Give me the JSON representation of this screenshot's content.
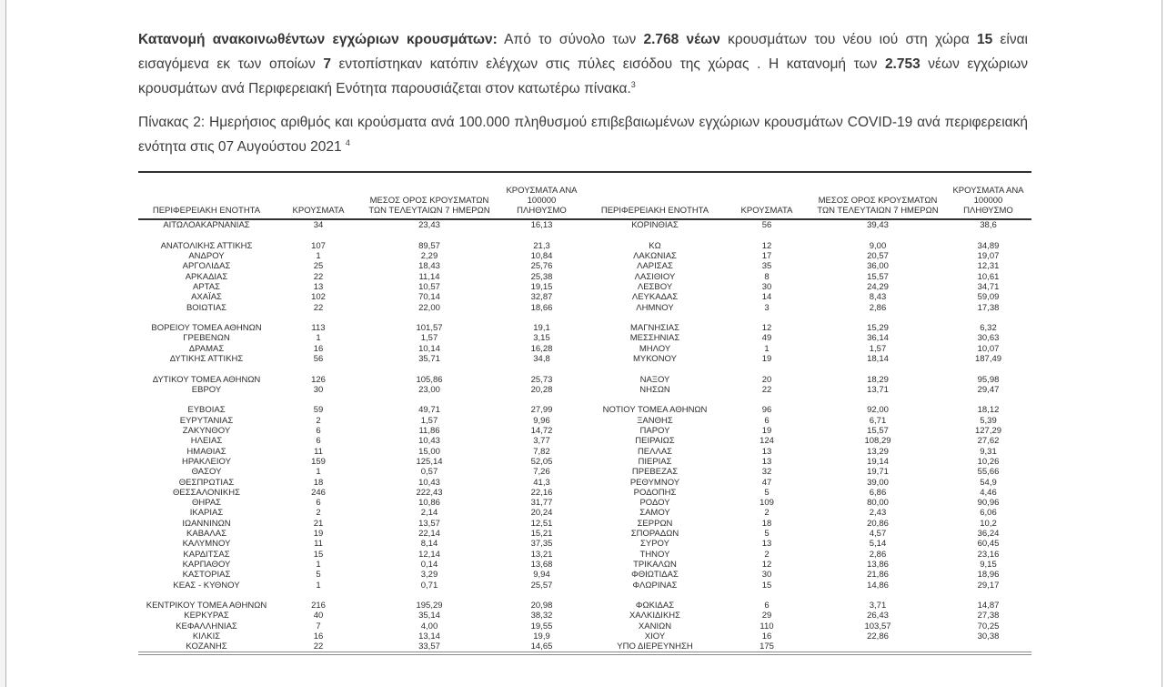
{
  "colors": {
    "text": "#3c3c3c",
    "table_text": "#2d2d2d",
    "rule": "#303030",
    "bottom_double_rule": "#8a8a8a",
    "page_edge_line": "#b3b3b3"
  },
  "intro": {
    "segments": [
      {
        "text": "Κατανομή ανακοινωθέντων εγχώριων κρουσμάτων:",
        "bold": true
      },
      {
        "text": " Από το σύνολο των "
      },
      {
        "text": "2.768 νέων",
        "bold": true
      },
      {
        "text": " κρουσμάτων του νέου ιού στη χώρα "
      },
      {
        "text": "15",
        "bold": true
      },
      {
        "text": " είναι εισαγόμενα εκ των οποίων "
      },
      {
        "text": "7",
        "bold": true
      },
      {
        "text": " εντοπίστηκαν κατόπιν ελέγχων στις πύλες εισόδου της χώρας .  Η κατανομή των "
      },
      {
        "text": "2.753",
        "bold": true
      },
      {
        "text": " νέων εγχώριων κρουσμάτων ανά Περιφερειακή Ενότητα παρουσιάζεται στον κατωτέρω πίνακα."
      },
      {
        "text": "3",
        "sup": true
      }
    ]
  },
  "caption": {
    "segments": [
      {
        "text": "Πίνακας 2:  Ημερήσιος αριθμός και κρούσματα ανά 100.000 πληθυσμού επιβεβαιωμένων εγχώριων κρουσμάτων COVID-19 ανά περιφερειακή ενότητα στις 07 Αυγούστου 2021 "
      },
      {
        "text": "4",
        "sup": true
      }
    ]
  },
  "table": {
    "headers": [
      "ΠΕΡΙΦΕΡΕΙΑΚΗ ΕΝΟΤΗΤΑ",
      "ΚΡΟΥΣΜΑΤΑ",
      "ΜΕΣΟΣ ΟΡΟΣ ΚΡΟΥΣΜΑΤΩΝ\nΤΩΝ ΤΕΛΕΥΤΑΙΩΝ 7 ΗΜΕΡΩΝ",
      "ΚΡΟΥΣΜΑΤΑ ΑΝΑ 100000\nΠΛΗΘΥΣΜΟ"
    ],
    "rows": [
      [
        "ΑΙΤΩΛΟΑΚΑΡΝΑΝΙΑΣ",
        "34",
        "23,43",
        "16,13",
        "ΚΟΡΙΝΘΙΑΣ",
        "56",
        "39,43",
        "38,6"
      ],
      null,
      [
        "ΑΝΑΤΟΛΙΚΗΣ ΑΤΤΙΚΗΣ",
        "107",
        "89,57",
        "21,3",
        "ΚΩ",
        "12",
        "9,00",
        "34,89"
      ],
      [
        "ΑΝΔΡΟΥ",
        "1",
        "2,29",
        "10,84",
        "ΛΑΚΩΝΙΑΣ",
        "17",
        "20,57",
        "19,07"
      ],
      [
        "ΑΡΓΟΛΙΔΑΣ",
        "25",
        "18,43",
        "25,76",
        "ΛΑΡΙΣΑΣ",
        "35",
        "36,00",
        "12,31"
      ],
      [
        "ΑΡΚΑΔΙΑΣ",
        "22",
        "11,14",
        "25,38",
        "ΛΑΣΙΘΙΟΥ",
        "8",
        "15,57",
        "10,61"
      ],
      [
        "ΑΡΤΑΣ",
        "13",
        "10,57",
        "19,15",
        "ΛΕΣΒΟΥ",
        "30",
        "24,29",
        "34,71"
      ],
      [
        "ΑΧΑΪΑΣ",
        "102",
        "70,14",
        "32,87",
        "ΛΕΥΚΑΔΑΣ",
        "14",
        "8,43",
        "59,09"
      ],
      [
        "ΒΟΙΩΤΙΑΣ",
        "22",
        "22,00",
        "18,66",
        "ΛΗΜΝΟΥ",
        "3",
        "2,86",
        "17,38"
      ],
      null,
      [
        "ΒΟΡΕΙΟΥ ΤΟΜΕΑ ΑΘΗΝΩΝ",
        "113",
        "101,57",
        "19,1",
        "ΜΑΓΝΗΣΙΑΣ",
        "12",
        "15,29",
        "6,32"
      ],
      [
        "ΓΡΕΒΕΝΩΝ",
        "1",
        "1,57",
        "3,15",
        "ΜΕΣΣΗΝΙΑΣ",
        "49",
        "36,14",
        "30,63"
      ],
      [
        "ΔΡΑΜΑΣ",
        "16",
        "10,14",
        "16,28",
        "ΜΗΛΟΥ",
        "1",
        "1,57",
        "10,07"
      ],
      [
        "ΔΥΤΙΚΗΣ ΑΤΤΙΚΗΣ",
        "56",
        "35,71",
        "34,8",
        "ΜΥΚΟΝΟΥ",
        "19",
        "18,14",
        "187,49"
      ],
      null,
      [
        "ΔΥΤΙΚΟΥ ΤΟΜΕΑ ΑΘΗΝΩΝ",
        "126",
        "105,86",
        "25,73",
        "ΝΑΞΟΥ",
        "20",
        "18,29",
        "95,98"
      ],
      [
        "ΕΒΡΟΥ",
        "30",
        "23,00",
        "20,28",
        "ΝΗΣΩΝ",
        "22",
        "13,71",
        "29,47"
      ],
      null,
      [
        "ΕΥΒΟΙΑΣ",
        "59",
        "49,71",
        "27,99",
        "ΝΟΤΙΟΥ ΤΟΜΕΑ ΑΘΗΝΩΝ",
        "96",
        "92,00",
        "18,12"
      ],
      [
        "ΕΥΡΥΤΑΝΙΑΣ",
        "2",
        "1,57",
        "9,96",
        "ΞΑΝΘΗΣ",
        "6",
        "6,71",
        "5,39"
      ],
      [
        "ΖΑΚΥΝΘΟΥ",
        "6",
        "11,86",
        "14,72",
        "ΠΑΡΟΥ",
        "19",
        "15,57",
        "127,29"
      ],
      [
        "ΗΛΕΙΑΣ",
        "6",
        "10,43",
        "3,77",
        "ΠΕΙΡΑΙΩΣ",
        "124",
        "108,29",
        "27,62"
      ],
      [
        "ΗΜΑΘΙΑΣ",
        "11",
        "15,00",
        "7,82",
        "ΠΕΛΛΑΣ",
        "13",
        "13,29",
        "9,31"
      ],
      [
        "ΗΡΑΚΛΕΙΟΥ",
        "159",
        "125,14",
        "52,05",
        "ΠΙΕΡΙΑΣ",
        "13",
        "19,14",
        "10,26"
      ],
      [
        "ΘΑΣΟΥ",
        "1",
        "0,57",
        "7,26",
        "ΠΡΕΒΕΖΑΣ",
        "32",
        "19,71",
        "55,66"
      ],
      [
        "ΘΕΣΠΡΩΤΙΑΣ",
        "18",
        "10,43",
        "41,3",
        "ΡΕΘΥΜΝΟΥ",
        "47",
        "39,00",
        "54,9"
      ],
      [
        "ΘΕΣΣΑΛΟΝΙΚΗΣ",
        "246",
        "222,43",
        "22,16",
        "ΡΟΔΟΠΗΣ",
        "5",
        "6,86",
        "4,46"
      ],
      [
        "ΘΗΡΑΣ",
        "6",
        "10,86",
        "31,77",
        "ΡΟΔΟΥ",
        "109",
        "80,00",
        "90,96"
      ],
      [
        "ΙΚΑΡΙΑΣ",
        "2",
        "2,14",
        "20,24",
        "ΣΑΜΟΥ",
        "2",
        "2,43",
        "6,06"
      ],
      [
        "ΙΩΑΝΝΙΝΩΝ",
        "21",
        "13,57",
        "12,51",
        "ΣΕΡΡΩΝ",
        "18",
        "20,86",
        "10,2"
      ],
      [
        "ΚΑΒΑΛΑΣ",
        "19",
        "22,14",
        "15,21",
        "ΣΠΟΡΑΔΩΝ",
        "5",
        "4,57",
        "36,24"
      ],
      [
        "ΚΑΛΥΜΝΟΥ",
        "11",
        "8,14",
        "37,35",
        "ΣΥΡΟΥ",
        "13",
        "5,14",
        "60,45"
      ],
      [
        "ΚΑΡΔΙΤΣΑΣ",
        "15",
        "12,14",
        "13,21",
        "ΤΗΝΟΥ",
        "2",
        "2,86",
        "23,16"
      ],
      [
        "ΚΑΡΠΑΘΟΥ",
        "1",
        "0,14",
        "13,68",
        "ΤΡΙΚΑΛΩΝ",
        "12",
        "13,86",
        "9,15"
      ],
      [
        "ΚΑΣΤΟΡΙΑΣ",
        "5",
        "3,29",
        "9,94",
        "ΦΘΙΩΤΙΔΑΣ",
        "30",
        "21,86",
        "18,96"
      ],
      [
        "ΚΕΑΣ - ΚΥΘΝΟΥ",
        "1",
        "0,71",
        "25,57",
        "ΦΛΩΡΙΝΑΣ",
        "15",
        "14,86",
        "29,17"
      ],
      null,
      [
        "ΚΕΝΤΡΙΚΟΥ ΤΟΜΕΑ ΑΘΗΝΩΝ",
        "216",
        "195,29",
        "20,98",
        "ΦΩΚΙΔΑΣ",
        "6",
        "3,71",
        "14,87"
      ],
      [
        "ΚΕΡΚΥΡΑΣ",
        "40",
        "35,14",
        "38,32",
        "ΧΑΛΚΙΔΙΚΗΣ",
        "29",
        "26,43",
        "27,38"
      ],
      [
        "ΚΕΦΑΛΛΗΝΙΑΣ",
        "7",
        "4,00",
        "19,55",
        "ΧΑΝΙΩΝ",
        "110",
        "103,57",
        "70,25"
      ],
      [
        "ΚΙΛΚΙΣ",
        "16",
        "13,14",
        "19,9",
        "ΧΙΟΥ",
        "16",
        "22,86",
        "30,38"
      ],
      [
        "ΚΟΖΑΝΗΣ",
        "22",
        "33,57",
        "14,65",
        "ΥΠΟ ΔΙΕΡΕΥΝΗΣΗ",
        "175",
        "",
        ""
      ]
    ]
  }
}
